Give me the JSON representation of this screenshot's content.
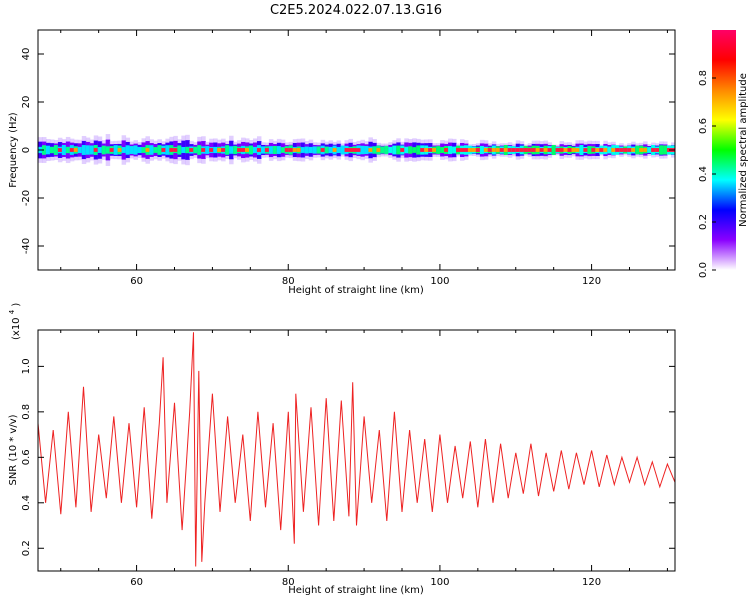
{
  "figure_title": "C2E5.2024.022.07.13.G16",
  "chart_data": [
    {
      "type": "heatmap",
      "xlabel": "Height of straight line (km)",
      "ylabel": "Frequency (Hz)",
      "xlim": [
        47,
        131
      ],
      "ylim": [
        -50,
        50
      ],
      "x_ticks": [
        60,
        80,
        100,
        120
      ],
      "y_ticks": [
        -40,
        -20,
        0,
        20,
        40
      ],
      "y_tick_labels": [
        "-40",
        "-20",
        "0",
        "20",
        "40"
      ],
      "colorbar": {
        "label": "Normalized spectral amplitude",
        "range": [
          0.0,
          1.0
        ],
        "ticks": [
          0.0,
          0.2,
          0.4,
          0.6,
          0.8
        ],
        "tick_labels": [
          "0.0",
          "0.2",
          "0.4",
          "0.6",
          "0.8"
        ],
        "colormap": [
          "#ffffff",
          "#8a00ff",
          "#0000ff",
          "#00ffff",
          "#00ff00",
          "#ffff00",
          "#ff8800",
          "#ff0000",
          "#ff0066"
        ]
      },
      "band": {
        "center_hz": 0,
        "strong_halfwidth_hz": 1.5,
        "weak_halfwidth_hz_start": 6,
        "weak_halfwidth_hz_end": 3
      },
      "grid": false
    },
    {
      "type": "line",
      "xlabel": "Height of straight line (km)",
      "ylabel": "SNR (10 * v/v)",
      "y_multiplier": "(x10",
      "y_multiplier_exp": "4",
      "y_multiplier_close": ")",
      "xlim": [
        47,
        131
      ],
      "ylim": [
        0.1,
        1.16
      ],
      "x_ticks": [
        60,
        80,
        100,
        120
      ],
      "y_ticks": [
        0.2,
        0.4,
        0.6,
        0.8,
        1.0
      ],
      "y_tick_labels": [
        "0.2",
        "0.4",
        "0.6",
        "0.8",
        "1.0"
      ],
      "series": [
        {
          "color": "#ee2222",
          "x": [
            47,
            48,
            49,
            50,
            51,
            52,
            53,
            54,
            55,
            56,
            57,
            58,
            59,
            60,
            61,
            62,
            63,
            63.5,
            64,
            65,
            66,
            67,
            67.5,
            67.8,
            68.2,
            68.6,
            69,
            70,
            71,
            72,
            73,
            74,
            75,
            76,
            77,
            78,
            79,
            80,
            80.8,
            81,
            82,
            83,
            84,
            85,
            86,
            87,
            88,
            88.5,
            89,
            90,
            91,
            92,
            93,
            94,
            95,
            96,
            97,
            98,
            99,
            100,
            101,
            102,
            103,
            104,
            105,
            106,
            107,
            108,
            109,
            110,
            111,
            112,
            113,
            114,
            115,
            116,
            117,
            118,
            119,
            120,
            121,
            122,
            123,
            124,
            125,
            126,
            127,
            128,
            129,
            130,
            131
          ],
          "y": [
            0.75,
            0.4,
            0.72,
            0.35,
            0.8,
            0.38,
            0.91,
            0.36,
            0.7,
            0.42,
            0.78,
            0.4,
            0.75,
            0.38,
            0.82,
            0.33,
            0.75,
            1.04,
            0.4,
            0.84,
            0.28,
            0.8,
            1.15,
            0.12,
            0.98,
            0.14,
            0.4,
            0.88,
            0.36,
            0.78,
            0.4,
            0.7,
            0.32,
            0.8,
            0.38,
            0.75,
            0.28,
            0.8,
            0.22,
            0.88,
            0.36,
            0.82,
            0.3,
            0.86,
            0.32,
            0.85,
            0.34,
            0.93,
            0.3,
            0.78,
            0.4,
            0.72,
            0.32,
            0.8,
            0.36,
            0.72,
            0.4,
            0.68,
            0.36,
            0.7,
            0.4,
            0.65,
            0.42,
            0.67,
            0.38,
            0.68,
            0.4,
            0.66,
            0.42,
            0.62,
            0.44,
            0.66,
            0.43,
            0.62,
            0.45,
            0.63,
            0.46,
            0.62,
            0.48,
            0.63,
            0.47,
            0.61,
            0.48,
            0.6,
            0.49,
            0.6,
            0.48,
            0.58,
            0.47,
            0.57,
            0.49
          ]
        }
      ],
      "grid": false
    }
  ]
}
